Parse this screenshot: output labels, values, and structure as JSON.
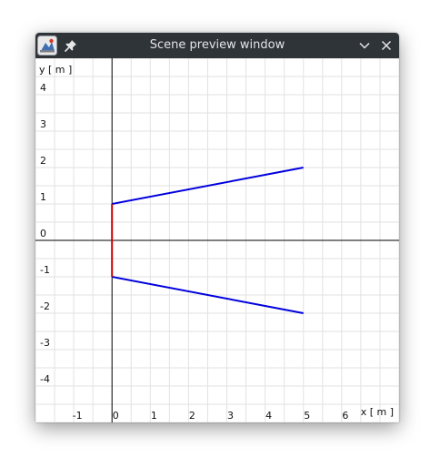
{
  "window": {
    "title": "Scene preview window",
    "titlebar_color": "#2f3439",
    "icons": {
      "app": "app-logo-icon",
      "pin": "pin-icon",
      "minimize": "chevron-down-icon",
      "close": "close-icon"
    }
  },
  "chart_data": {
    "type": "line",
    "xlabel": "x [ m ]",
    "ylabel": "y [ m ]",
    "xlim": [
      -2,
      7.5
    ],
    "ylim": [
      -5,
      5
    ],
    "x_ticks": [
      -1,
      0,
      1,
      2,
      3,
      4,
      5,
      6
    ],
    "y_ticks": [
      4,
      3,
      2,
      1,
      0,
      -1,
      -2,
      -3,
      -4
    ],
    "grid": true,
    "legend": "none",
    "series": [
      {
        "color": "#0000dd",
        "points": [
          [
            0,
            1
          ],
          [
            5,
            2
          ]
        ]
      },
      {
        "color": "#0000dd",
        "points": [
          [
            0,
            -1
          ],
          [
            5,
            -2
          ]
        ]
      },
      {
        "color": "#cc0000",
        "points": [
          [
            0,
            -1
          ],
          [
            0,
            1
          ]
        ]
      }
    ]
  }
}
